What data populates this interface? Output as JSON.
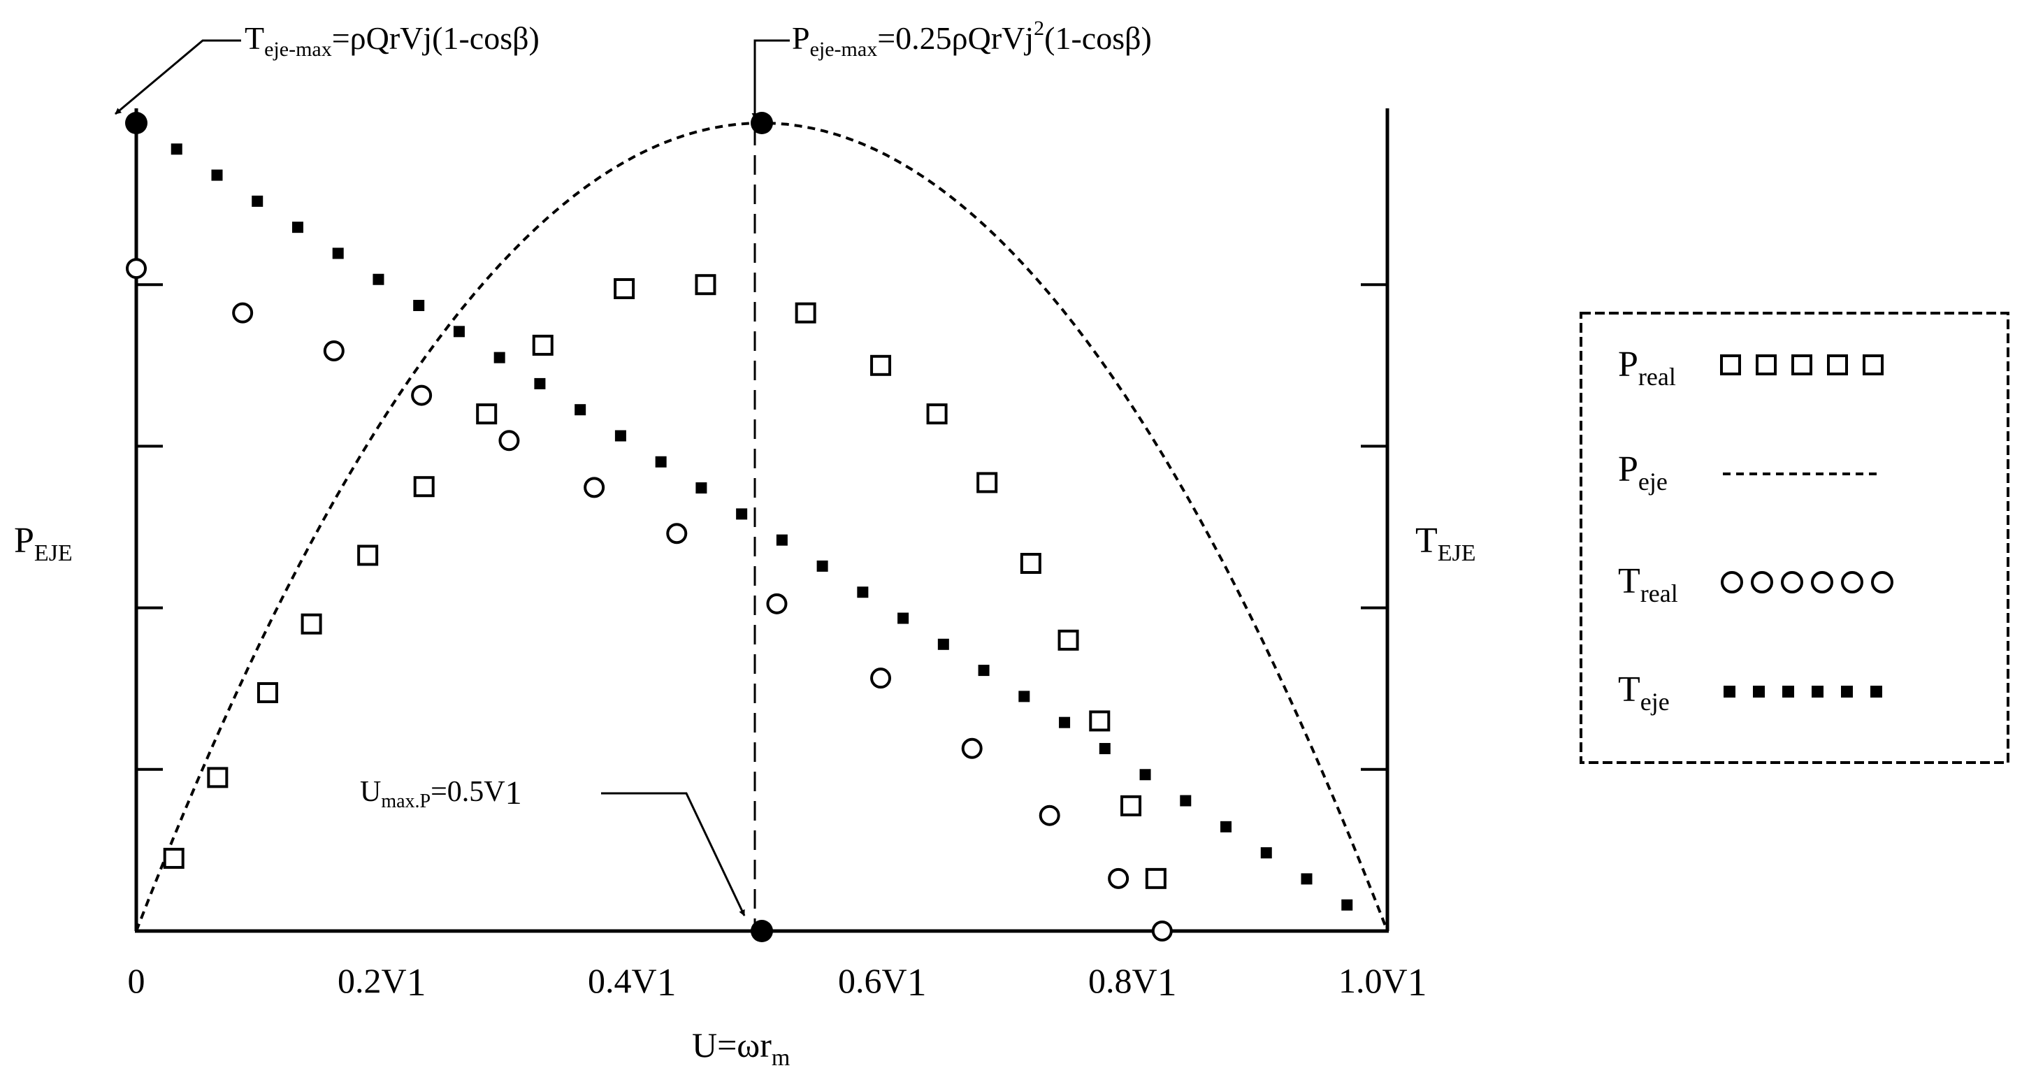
{
  "chart_data": {
    "type": "line",
    "title": "",
    "xlabel": {
      "main": "U=ωr",
      "sub": "m"
    },
    "ylabel_left": {
      "main": "P",
      "sub": "EJE"
    },
    "ylabel_right": {
      "main": "T",
      "sub": "EJE"
    },
    "xlim": [
      0,
      1.0
    ],
    "ylim": [
      0,
      1.0
    ],
    "grid": false,
    "legend_position": "right",
    "x_ticks": [
      {
        "value": 0,
        "label": "0",
        "sub": ""
      },
      {
        "value": 0.2,
        "label": "0.2V",
        "sub": "1"
      },
      {
        "value": 0.4,
        "label": "0.4V",
        "sub": "1"
      },
      {
        "value": 0.6,
        "label": "0.6V",
        "sub": "1"
      },
      {
        "value": 0.8,
        "label": "0.8V",
        "sub": "1"
      },
      {
        "value": 1.0,
        "label": "1.0V",
        "sub": "1"
      }
    ],
    "y_ticks": [
      0.2,
      0.4,
      0.6,
      0.8
    ],
    "series": [
      {
        "name": "P_real",
        "label_main": "P",
        "label_sub": "real",
        "style": "square-markers",
        "points": [
          [
            0.03,
            0.09
          ],
          [
            0.065,
            0.19
          ],
          [
            0.105,
            0.295
          ],
          [
            0.14,
            0.38
          ],
          [
            0.185,
            0.465
          ],
          [
            0.23,
            0.55
          ],
          [
            0.28,
            0.64
          ],
          [
            0.325,
            0.725
          ],
          [
            0.39,
            0.795
          ],
          [
            0.455,
            0.8
          ],
          [
            0.535,
            0.765
          ],
          [
            0.595,
            0.7
          ],
          [
            0.64,
            0.64
          ],
          [
            0.68,
            0.555
          ],
          [
            0.715,
            0.455
          ],
          [
            0.745,
            0.36
          ],
          [
            0.77,
            0.26
          ],
          [
            0.795,
            0.155
          ],
          [
            0.815,
            0.065
          ]
        ]
      },
      {
        "name": "P_eje",
        "label_main": "P",
        "label_sub": "eje",
        "style": "dashed-line",
        "equation": "4u(1-u)",
        "x": [
          0,
          0.1,
          0.2,
          0.3,
          0.4,
          0.5,
          0.6,
          0.7,
          0.8,
          0.9,
          1.0
        ],
        "values": [
          0,
          0.36,
          0.64,
          0.84,
          0.96,
          1.0,
          0.96,
          0.84,
          0.64,
          0.36,
          0
        ]
      },
      {
        "name": "T_real",
        "label_main": "T",
        "label_sub": "real",
        "style": "circle-markers",
        "points": [
          [
            0,
            0.82
          ],
          [
            0.085,
            0.765
          ],
          [
            0.158,
            0.718
          ],
          [
            0.228,
            0.663
          ],
          [
            0.298,
            0.607
          ],
          [
            0.366,
            0.549
          ],
          [
            0.432,
            0.492
          ],
          [
            0.512,
            0.405
          ],
          [
            0.595,
            0.313
          ],
          [
            0.668,
            0.226
          ],
          [
            0.73,
            0.143
          ],
          [
            0.785,
            0.065
          ],
          [
            0.82,
            0.0
          ]
        ]
      },
      {
        "name": "T_eje",
        "label_main": "T",
        "label_sub": "eje",
        "style": "dotted-line",
        "equation": "1-u",
        "x": [
          0,
          1.0
        ],
        "values": [
          1.0,
          0
        ]
      }
    ],
    "points_of_interest": [
      {
        "name": "T_eje_max",
        "x": 0,
        "y": 1.0
      },
      {
        "name": "P_eje_max",
        "x": 0.5,
        "y": 1.0
      },
      {
        "name": "U_max_P",
        "x": 0.5,
        "y": 0
      }
    ],
    "annotations": {
      "t_max": {
        "main": "T",
        "sub": "eje-max",
        "rest": "=ρQrVj(1-cosβ)"
      },
      "p_max": {
        "main": "P",
        "sub": "eje-max",
        "mid": "=0.25ρQrVj",
        "sup": "2",
        "rest": "(1-cosβ)"
      },
      "u_max": {
        "main": "U",
        "sub": "max.P",
        "rest": "=0.5V",
        "tail": "1"
      }
    }
  }
}
